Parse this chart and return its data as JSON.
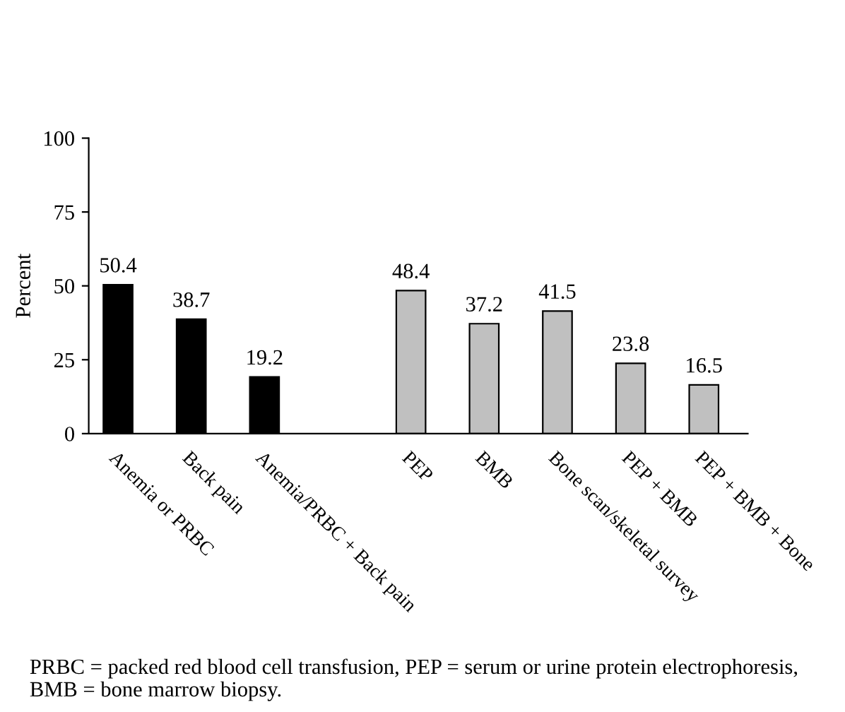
{
  "chart_data": {
    "type": "bar",
    "ylabel": "Percent",
    "categories": [
      "Anemia or PRBC",
      "Back pain",
      "Anemia/PRBC + Back pain",
      null,
      "PEP",
      "BMB",
      "Bone scan/skeletal survey",
      "PEP + BMB",
      "PEP + BMB + Bone"
    ],
    "values": [
      50.4,
      38.7,
      19.2,
      null,
      48.4,
      37.2,
      41.5,
      23.8,
      16.5
    ],
    "colors": [
      "#000000",
      "#000000",
      "#000000",
      null,
      "#c0c0c0",
      "#c0c0c0",
      "#c0c0c0",
      "#c0c0c0",
      "#c0c0c0"
    ],
    "ylim": [
      0,
      100
    ],
    "yticks": [
      0,
      25,
      50,
      75,
      100
    ],
    "grid": false,
    "data_labels": true,
    "legend": false,
    "annotations": [
      "PRBC = packed red blood cell transfusion, PEP = serum or urine protein electrophoresis, BMB = bone marrow biopsy."
    ]
  }
}
